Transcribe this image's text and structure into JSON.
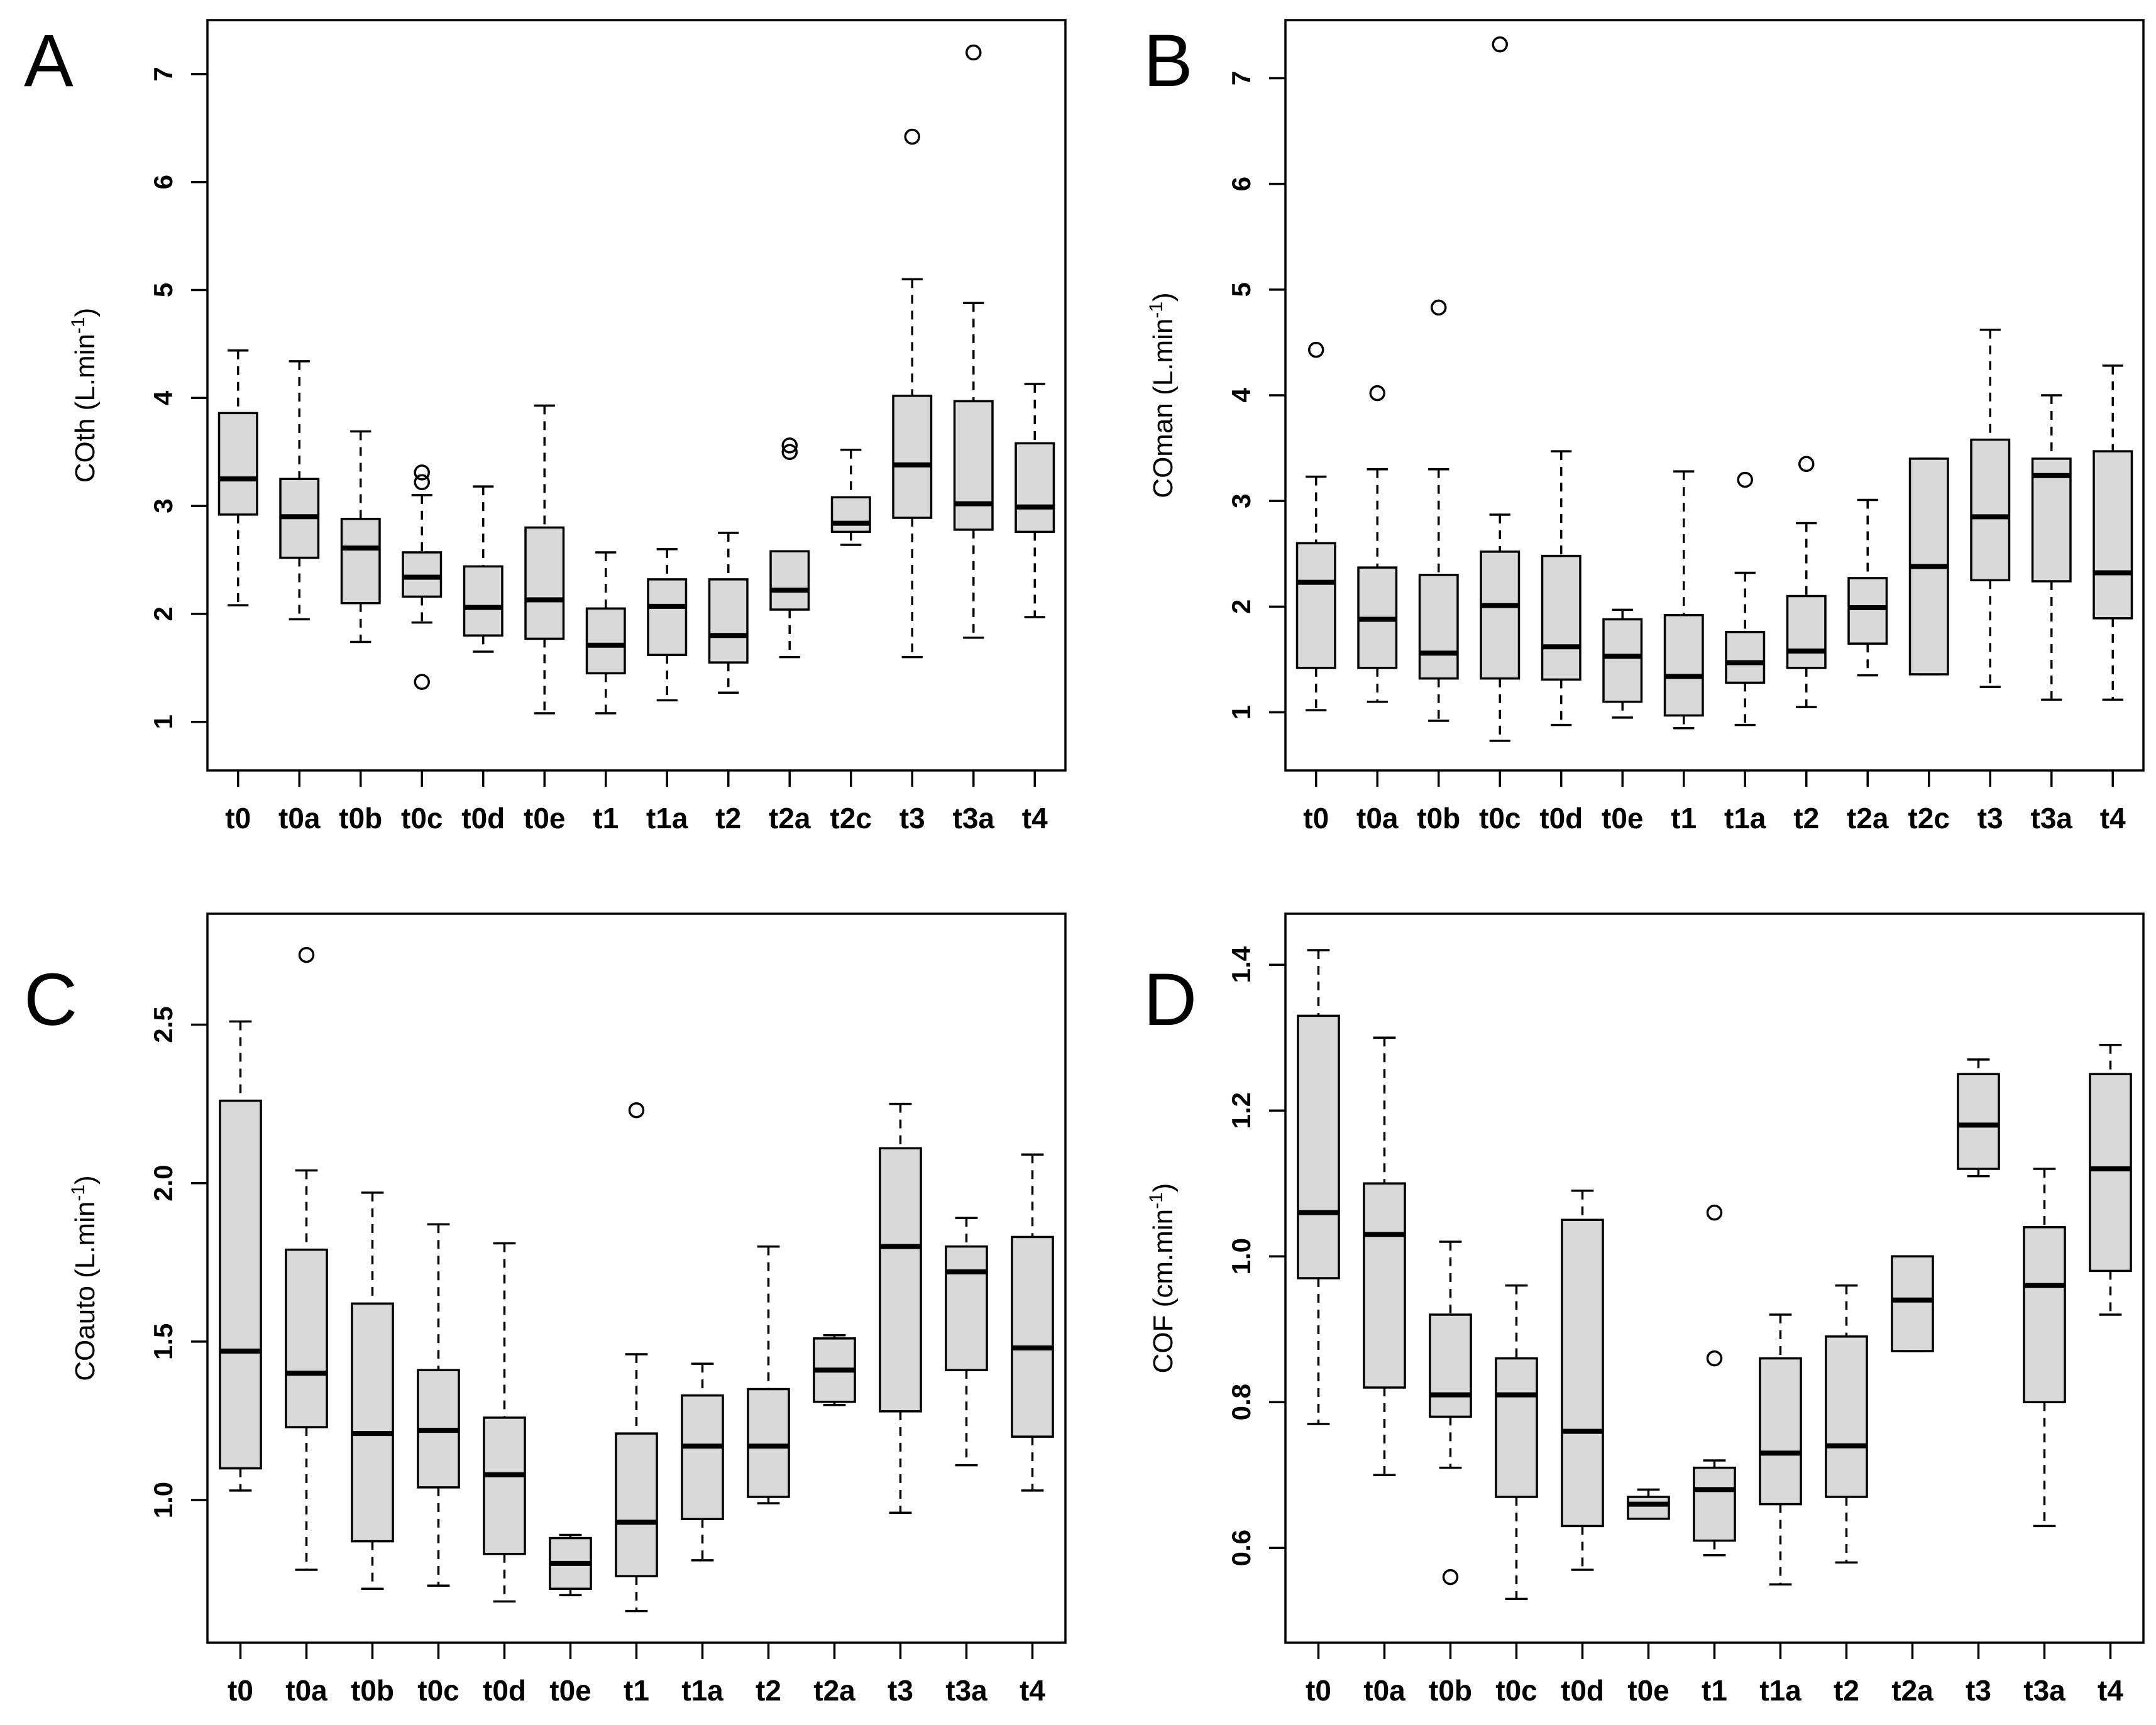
{
  "figure": {
    "background": "#ffffff",
    "box_fill": "#d9d9d9",
    "line_color": "#000000"
  },
  "chart_data": [
    {
      "panel": "A",
      "type": "boxplot",
      "ylabel_parts": [
        "COth (L.min",
        "-1",
        ")"
      ],
      "ylim": [
        0.55,
        7.5
      ],
      "ytick_values": [
        1,
        2,
        3,
        4,
        5,
        6,
        7
      ],
      "ytick_labels": [
        "1",
        "2",
        "3",
        "4",
        "5",
        "6",
        "7"
      ],
      "grid": false,
      "categories": [
        "t0",
        "t0a",
        "t0b",
        "t0c",
        "t0d",
        "t0e",
        "t1",
        "t1a",
        "t2",
        "t2a",
        "t2c",
        "t3",
        "t3a",
        "t4"
      ],
      "boxes": [
        {
          "lo": 2.08,
          "q1": 2.92,
          "med": 3.25,
          "q3": 3.86,
          "hi": 4.44,
          "outliers": []
        },
        {
          "lo": 1.95,
          "q1": 2.52,
          "med": 2.9,
          "q3": 3.25,
          "hi": 4.34,
          "outliers": []
        },
        {
          "lo": 1.74,
          "q1": 2.1,
          "med": 2.61,
          "q3": 2.88,
          "hi": 3.69,
          "outliers": []
        },
        {
          "lo": 1.92,
          "q1": 2.16,
          "med": 2.34,
          "q3": 2.57,
          "hi": 3.1,
          "outliers": [
            1.37,
            3.22,
            3.31
          ]
        },
        {
          "lo": 1.65,
          "q1": 1.8,
          "med": 2.06,
          "q3": 2.44,
          "hi": 3.18,
          "outliers": []
        },
        {
          "lo": 1.08,
          "q1": 1.77,
          "med": 2.13,
          "q3": 2.8,
          "hi": 3.93,
          "outliers": []
        },
        {
          "lo": 1.08,
          "q1": 1.45,
          "med": 1.71,
          "q3": 2.05,
          "hi": 2.57,
          "outliers": []
        },
        {
          "lo": 1.2,
          "q1": 1.62,
          "med": 2.07,
          "q3": 2.32,
          "hi": 2.6,
          "outliers": []
        },
        {
          "lo": 1.27,
          "q1": 1.55,
          "med": 1.8,
          "q3": 2.32,
          "hi": 2.75,
          "outliers": []
        },
        {
          "lo": 1.6,
          "q1": 2.04,
          "med": 2.22,
          "q3": 2.58,
          "hi": 2.58,
          "outliers": [
            3.5,
            3.56
          ]
        },
        {
          "lo": 2.64,
          "q1": 2.76,
          "med": 2.84,
          "q3": 3.08,
          "hi": 3.52,
          "outliers": []
        },
        {
          "lo": 1.6,
          "q1": 2.89,
          "med": 3.38,
          "q3": 4.02,
          "hi": 5.1,
          "outliers": [
            6.42
          ]
        },
        {
          "lo": 1.78,
          "q1": 2.78,
          "med": 3.02,
          "q3": 3.97,
          "hi": 4.88,
          "outliers": [
            7.2
          ]
        },
        {
          "lo": 1.97,
          "q1": 2.76,
          "med": 2.99,
          "q3": 3.58,
          "hi": 4.13,
          "outliers": []
        }
      ]
    },
    {
      "panel": "B",
      "type": "boxplot",
      "ylabel_parts": [
        "COman (L.min",
        "-1",
        ")"
      ],
      "ylim": [
        0.45,
        7.55
      ],
      "ytick_values": [
        1,
        2,
        3,
        4,
        5,
        6,
        7
      ],
      "ytick_labels": [
        "1",
        "2",
        "3",
        "4",
        "5",
        "6",
        "7"
      ],
      "grid": false,
      "categories": [
        "t0",
        "t0a",
        "t0b",
        "t0c",
        "t0d",
        "t0e",
        "t1",
        "t1a",
        "t2",
        "t2a",
        "t2c",
        "t3",
        "t3a",
        "t4"
      ],
      "boxes": [
        {
          "lo": 1.02,
          "q1": 1.42,
          "med": 2.23,
          "q3": 2.6,
          "hi": 3.23,
          "outliers": [
            4.43
          ]
        },
        {
          "lo": 1.1,
          "q1": 1.42,
          "med": 1.88,
          "q3": 2.37,
          "hi": 3.3,
          "outliers": [
            4.02
          ]
        },
        {
          "lo": 0.92,
          "q1": 1.32,
          "med": 1.56,
          "q3": 2.3,
          "hi": 3.3,
          "outliers": [
            4.83
          ]
        },
        {
          "lo": 0.73,
          "q1": 1.32,
          "med": 2.01,
          "q3": 2.52,
          "hi": 2.87,
          "outliers": [
            7.32
          ]
        },
        {
          "lo": 0.88,
          "q1": 1.31,
          "med": 1.62,
          "q3": 2.48,
          "hi": 3.47,
          "outliers": []
        },
        {
          "lo": 0.95,
          "q1": 1.1,
          "med": 1.53,
          "q3": 1.88,
          "hi": 1.97,
          "outliers": []
        },
        {
          "lo": 0.85,
          "q1": 0.97,
          "med": 1.34,
          "q3": 1.92,
          "hi": 3.28,
          "outliers": []
        },
        {
          "lo": 0.88,
          "q1": 1.28,
          "med": 1.47,
          "q3": 1.76,
          "hi": 2.32,
          "outliers": [
            3.2
          ]
        },
        {
          "lo": 1.05,
          "q1": 1.42,
          "med": 1.58,
          "q3": 2.1,
          "hi": 2.79,
          "outliers": [
            3.35
          ]
        },
        {
          "lo": 1.35,
          "q1": 1.65,
          "med": 1.99,
          "q3": 2.27,
          "hi": 3.01,
          "outliers": []
        },
        {
          "lo": 1.36,
          "q1": 1.36,
          "med": 2.38,
          "q3": 3.4,
          "hi": 3.4,
          "outliers": []
        },
        {
          "lo": 1.24,
          "q1": 2.25,
          "med": 2.85,
          "q3": 3.58,
          "hi": 4.62,
          "outliers": []
        },
        {
          "lo": 1.12,
          "q1": 2.24,
          "med": 3.24,
          "q3": 3.4,
          "hi": 4.0,
          "outliers": []
        },
        {
          "lo": 1.12,
          "q1": 1.89,
          "med": 2.32,
          "q3": 3.47,
          "hi": 4.28,
          "outliers": []
        }
      ]
    },
    {
      "panel": "C",
      "type": "boxplot",
      "ylabel_parts": [
        "COauto (L.min",
        "-1",
        ")"
      ],
      "ylim": [
        0.55,
        2.85
      ],
      "ytick_values": [
        1.0,
        1.5,
        2.0,
        2.5
      ],
      "ytick_labels": [
        "1.0",
        "1.5",
        "2.0",
        "2.5"
      ],
      "grid": false,
      "categories": [
        "t0",
        "t0a",
        "t0b",
        "t0c",
        "t0d",
        "t0e",
        "t1",
        "t1a",
        "t2",
        "t2a",
        "t3",
        "t3a",
        "t4"
      ],
      "boxes": [
        {
          "lo": 1.03,
          "q1": 1.1,
          "med": 1.47,
          "q3": 2.26,
          "hi": 2.51,
          "outliers": []
        },
        {
          "lo": 0.78,
          "q1": 1.23,
          "med": 1.4,
          "q3": 1.79,
          "hi": 2.04,
          "outliers": [
            2.72
          ]
        },
        {
          "lo": 0.72,
          "q1": 0.87,
          "med": 1.21,
          "q3": 1.62,
          "hi": 1.97,
          "outliers": []
        },
        {
          "lo": 0.73,
          "q1": 1.04,
          "med": 1.22,
          "q3": 1.41,
          "hi": 1.87,
          "outliers": []
        },
        {
          "lo": 0.68,
          "q1": 0.83,
          "med": 1.08,
          "q3": 1.26,
          "hi": 1.81,
          "outliers": []
        },
        {
          "lo": 0.7,
          "q1": 0.72,
          "med": 0.8,
          "q3": 0.88,
          "hi": 0.89,
          "outliers": []
        },
        {
          "lo": 0.65,
          "q1": 0.76,
          "med": 0.93,
          "q3": 1.21,
          "hi": 1.46,
          "outliers": [
            2.23
          ]
        },
        {
          "lo": 0.81,
          "q1": 0.94,
          "med": 1.17,
          "q3": 1.33,
          "hi": 1.43,
          "outliers": []
        },
        {
          "lo": 0.99,
          "q1": 1.01,
          "med": 1.17,
          "q3": 1.35,
          "hi": 1.8,
          "outliers": []
        },
        {
          "lo": 1.3,
          "q1": 1.31,
          "med": 1.41,
          "q3": 1.51,
          "hi": 1.52,
          "outliers": []
        },
        {
          "lo": 0.96,
          "q1": 1.28,
          "med": 1.8,
          "q3": 2.11,
          "hi": 2.25,
          "outliers": []
        },
        {
          "lo": 1.11,
          "q1": 1.41,
          "med": 1.72,
          "q3": 1.8,
          "hi": 1.89,
          "outliers": []
        },
        {
          "lo": 1.03,
          "q1": 1.2,
          "med": 1.48,
          "q3": 1.83,
          "hi": 2.09,
          "outliers": []
        }
      ]
    },
    {
      "panel": "D",
      "type": "boxplot",
      "ylabel_parts": [
        "COF (cm.min",
        "-1",
        ")"
      ],
      "ylim": [
        0.47,
        1.47
      ],
      "ytick_values": [
        0.6,
        0.8,
        1.0,
        1.2,
        1.4
      ],
      "ytick_labels": [
        "0.6",
        "0.8",
        "1.0",
        "1.2",
        "1.4"
      ],
      "grid": false,
      "categories": [
        "t0",
        "t0a",
        "t0b",
        "t0c",
        "t0d",
        "t0e",
        "t1",
        "t1a",
        "t2",
        "t2a",
        "t3",
        "t3a",
        "t4"
      ],
      "boxes": [
        {
          "lo": 0.77,
          "q1": 0.97,
          "med": 1.06,
          "q3": 1.33,
          "hi": 1.42,
          "outliers": []
        },
        {
          "lo": 0.7,
          "q1": 0.82,
          "med": 1.03,
          "q3": 1.1,
          "hi": 1.3,
          "outliers": []
        },
        {
          "lo": 0.71,
          "q1": 0.78,
          "med": 0.81,
          "q3": 0.92,
          "hi": 1.02,
          "outliers": [
            0.56
          ]
        },
        {
          "lo": 0.53,
          "q1": 0.67,
          "med": 0.81,
          "q3": 0.86,
          "hi": 0.96,
          "outliers": []
        },
        {
          "lo": 0.57,
          "q1": 0.63,
          "med": 0.76,
          "q3": 1.05,
          "hi": 1.09,
          "outliers": []
        },
        {
          "lo": 0.64,
          "q1": 0.64,
          "med": 0.66,
          "q3": 0.67,
          "hi": 0.68,
          "outliers": []
        },
        {
          "lo": 0.59,
          "q1": 0.61,
          "med": 0.68,
          "q3": 0.71,
          "hi": 0.72,
          "outliers": [
            0.86,
            1.06
          ]
        },
        {
          "lo": 0.55,
          "q1": 0.66,
          "med": 0.73,
          "q3": 0.86,
          "hi": 0.92,
          "outliers": []
        },
        {
          "lo": 0.58,
          "q1": 0.67,
          "med": 0.74,
          "q3": 0.89,
          "hi": 0.96,
          "outliers": []
        },
        {
          "lo": 0.87,
          "q1": 0.87,
          "med": 0.94,
          "q3": 1.0,
          "hi": 1.0,
          "outliers": []
        },
        {
          "lo": 1.11,
          "q1": 1.12,
          "med": 1.18,
          "q3": 1.25,
          "hi": 1.27,
          "outliers": []
        },
        {
          "lo": 0.63,
          "q1": 0.8,
          "med": 0.96,
          "q3": 1.04,
          "hi": 1.12,
          "outliers": []
        },
        {
          "lo": 0.92,
          "q1": 0.98,
          "med": 1.12,
          "q3": 1.25,
          "hi": 1.29,
          "outliers": []
        }
      ]
    }
  ]
}
